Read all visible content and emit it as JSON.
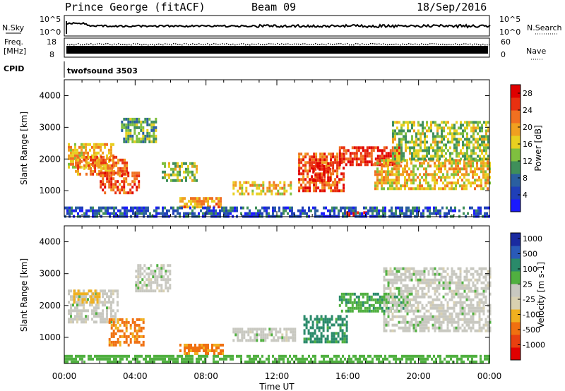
{
  "header": {
    "station": "Prince George (fitACF)",
    "beam": "Beam 09",
    "date": "18/Sep/2016"
  },
  "strip_panels": {
    "nsky_label": "N.Sky",
    "nsky_ticks": [
      "10^5",
      "10^0"
    ],
    "nsearch_label": "N.Search",
    "nsearch_ticks": [
      "10^5",
      "10^0"
    ],
    "freq_label_line1": "Freq.",
    "freq_label_line2": "[MHz]",
    "freq_ticks": [
      "18",
      "8"
    ],
    "nave_label": "Nave",
    "nave_ticks": [
      "60",
      "0"
    ],
    "cpid_label": "CPID",
    "cpid_value": "twofsound 3503"
  },
  "colors": {
    "power_scale": [
      "#1a1aff",
      "#1f3fb8",
      "#2a5fa0",
      "#3f8f5a",
      "#7fbf3f",
      "#e8d020",
      "#f0a020",
      "#f07020",
      "#e83010",
      "#e00000"
    ],
    "velocity_scale": [
      "#1a2aa0",
      "#2a5ab8",
      "#2a8a6a",
      "#50b040",
      "#c8c8c0",
      "#d8d0b0",
      "#f0b020",
      "#f07010",
      "#e84010",
      "#e00000"
    ]
  },
  "chart_data": [
    {
      "type": "heatmap",
      "name": "Power",
      "ylabel": "Slant Range [km]",
      "xlabel": "",
      "x_ticks": [
        "00:00",
        "04:00",
        "08:00",
        "12:00",
        "16:00",
        "20:00",
        "00:00"
      ],
      "y_ticks": [
        "1000",
        "2000",
        "3000",
        "4000"
      ],
      "xlim_hours": [
        0,
        24
      ],
      "ylim_km": [
        180,
        4500
      ],
      "colorbar_label": "Power [dB]",
      "colorbar_ticks": [
        "4",
        "8",
        "12",
        "16",
        "20",
        "24",
        "28"
      ],
      "colorbar_range": [
        0,
        30
      ],
      "regions": [
        {
          "t0": 0.2,
          "t1": 2.8,
          "r0": 1700,
          "r1": 2500,
          "value": 18
        },
        {
          "t0": 0.6,
          "t1": 3.5,
          "r0": 1500,
          "r1": 2100,
          "value": 22
        },
        {
          "t0": 2.0,
          "t1": 4.2,
          "r0": 900,
          "r1": 1600,
          "value": 24
        },
        {
          "t0": 3.2,
          "t1": 5.2,
          "r0": 2500,
          "r1": 3300,
          "value": 12
        },
        {
          "t0": 5.5,
          "t1": 7.5,
          "r0": 1300,
          "r1": 1900,
          "value": 14
        },
        {
          "t0": 6.5,
          "t1": 8.8,
          "r0": 500,
          "r1": 800,
          "value": 20
        },
        {
          "t0": 9.5,
          "t1": 12.8,
          "r0": 900,
          "r1": 1300,
          "value": 18
        },
        {
          "t0": 13.2,
          "t1": 15.8,
          "r0": 1000,
          "r1": 2200,
          "value": 24
        },
        {
          "t0": 14.0,
          "t1": 15.0,
          "r0": 1300,
          "r1": 1900,
          "value": 28
        },
        {
          "t0": 15.5,
          "t1": 19.0,
          "r0": 1800,
          "r1": 2400,
          "value": 26
        },
        {
          "t0": 15.8,
          "t1": 17.0,
          "r0": 200,
          "r1": 350,
          "value": 30
        },
        {
          "t0": 17.5,
          "t1": 24.0,
          "r0": 1100,
          "r1": 2000,
          "value": 18
        },
        {
          "t0": 18.5,
          "t1": 24.0,
          "r0": 2000,
          "r1": 3200,
          "value": 14
        },
        {
          "t0": 0.0,
          "t1": 24.0,
          "r0": 200,
          "r1": 500,
          "value": 6
        }
      ]
    },
    {
      "type": "heatmap",
      "name": "Velocity",
      "ylabel": "Slant Range [km]",
      "xlabel": "Time UT",
      "x_ticks": [
        "00:00",
        "04:00",
        "08:00",
        "12:00",
        "16:00",
        "20:00",
        "00:00"
      ],
      "y_ticks": [
        "1000",
        "2000",
        "3000",
        "4000"
      ],
      "xlim_hours": [
        0,
        24
      ],
      "ylim_km": [
        180,
        4500
      ],
      "colorbar_label": "Velocity [m s-1]",
      "colorbar_ticks": [
        "1000",
        "500",
        "100",
        "25",
        "-25",
        "-100",
        "-500",
        "-1000"
      ],
      "regions": [
        {
          "t0": 0.2,
          "t1": 3.0,
          "r0": 1500,
          "r1": 2500,
          "value": 0
        },
        {
          "t0": 0.5,
          "t1": 2.0,
          "r0": 2100,
          "r1": 2500,
          "value": -150
        },
        {
          "t0": 2.5,
          "t1": 4.5,
          "r0": 800,
          "r1": 1600,
          "value": -400
        },
        {
          "t0": 4.0,
          "t1": 6.0,
          "r0": 2500,
          "r1": 3300,
          "value": 0
        },
        {
          "t0": 6.5,
          "t1": 9.0,
          "r0": 500,
          "r1": 800,
          "value": -400
        },
        {
          "t0": 9.5,
          "t1": 13.0,
          "r0": 900,
          "r1": 1300,
          "value": 0
        },
        {
          "t0": 13.5,
          "t1": 16.0,
          "r0": 900,
          "r1": 1700,
          "value": 150
        },
        {
          "t0": 15.5,
          "t1": 19.5,
          "r0": 1800,
          "r1": 2400,
          "value": 80
        },
        {
          "t0": 18.0,
          "t1": 24.0,
          "r0": 1200,
          "r1": 3200,
          "value": 0
        },
        {
          "t0": 0.0,
          "t1": 24.0,
          "r0": 200,
          "r1": 450,
          "value": 60
        }
      ]
    }
  ]
}
